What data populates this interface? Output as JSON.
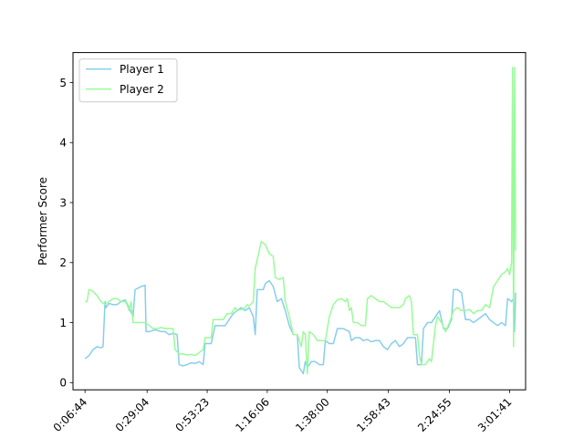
{
  "chart_data": {
    "type": "line",
    "title": "",
    "xlabel": "",
    "ylabel": "Performer Score",
    "xlim": [
      -0.6,
      22.0
    ],
    "ylim": [
      -0.12,
      5.5
    ],
    "x_ticks": [
      {
        "pos": 0.0,
        "label": "0:06:44"
      },
      {
        "pos": 3.1,
        "label": "0:29:04"
      },
      {
        "pos": 6.1,
        "label": "0:53:23"
      },
      {
        "pos": 9.1,
        "label": "1:16:06"
      },
      {
        "pos": 12.1,
        "label": "1:38:00"
      },
      {
        "pos": 15.15,
        "label": "1:58:43"
      },
      {
        "pos": 18.2,
        "label": "2:24:55"
      },
      {
        "pos": 21.2,
        "label": "3:01:41"
      }
    ],
    "y_ticks": [
      0,
      1,
      2,
      3,
      4,
      5
    ],
    "grid": false,
    "legend": "upper-left",
    "series": [
      {
        "name": "Player 1",
        "color": "#87ceeb",
        "points": [
          [
            0,
            0.4
          ],
          [
            0.2,
            0.45
          ],
          [
            0.4,
            0.55
          ],
          [
            0.6,
            0.6
          ],
          [
            0.8,
            0.58
          ],
          [
            0.9,
            0.6
          ],
          [
            1.0,
            1.35
          ],
          [
            1.05,
            1.25
          ],
          [
            1.2,
            1.32
          ],
          [
            1.4,
            1.3
          ],
          [
            1.6,
            1.3
          ],
          [
            1.8,
            1.35
          ],
          [
            2.0,
            1.38
          ],
          [
            2.2,
            1.25
          ],
          [
            2.4,
            1.1
          ],
          [
            2.5,
            1.55
          ],
          [
            2.8,
            1.6
          ],
          [
            3.0,
            1.62
          ],
          [
            3.05,
            0.85
          ],
          [
            3.2,
            0.85
          ],
          [
            3.5,
            0.88
          ],
          [
            3.8,
            0.85
          ],
          [
            4.0,
            0.85
          ],
          [
            4.2,
            0.8
          ],
          [
            4.4,
            0.82
          ],
          [
            4.6,
            0.8
          ],
          [
            4.7,
            0.3
          ],
          [
            4.9,
            0.28
          ],
          [
            5.1,
            0.3
          ],
          [
            5.3,
            0.33
          ],
          [
            5.5,
            0.32
          ],
          [
            5.7,
            0.35
          ],
          [
            5.9,
            0.3
          ],
          [
            6.0,
            0.65
          ],
          [
            6.3,
            0.65
          ],
          [
            6.5,
            0.95
          ],
          [
            6.8,
            0.95
          ],
          [
            7.0,
            0.95
          ],
          [
            7.2,
            1.05
          ],
          [
            7.4,
            1.15
          ],
          [
            7.6,
            1.2
          ],
          [
            7.8,
            1.25
          ],
          [
            8.0,
            1.2
          ],
          [
            8.2,
            1.25
          ],
          [
            8.4,
            1.1
          ],
          [
            8.5,
            0.8
          ],
          [
            8.6,
            1.55
          ],
          [
            8.9,
            1.55
          ],
          [
            9.0,
            1.65
          ],
          [
            9.2,
            1.7
          ],
          [
            9.4,
            1.6
          ],
          [
            9.6,
            1.35
          ],
          [
            9.8,
            1.4
          ],
          [
            10.0,
            1.2
          ],
          [
            10.2,
            0.95
          ],
          [
            10.4,
            0.8
          ],
          [
            10.6,
            0.8
          ],
          [
            10.7,
            0.25
          ],
          [
            10.9,
            0.15
          ],
          [
            11.0,
            0.35
          ],
          [
            11.1,
            0.25
          ],
          [
            11.3,
            0.35
          ],
          [
            11.5,
            0.35
          ],
          [
            11.7,
            0.3
          ],
          [
            11.9,
            0.3
          ],
          [
            12.0,
            0.7
          ],
          [
            12.2,
            0.65
          ],
          [
            12.4,
            0.65
          ],
          [
            12.6,
            0.9
          ],
          [
            12.9,
            0.9
          ],
          [
            13.2,
            0.85
          ],
          [
            13.3,
            0.7
          ],
          [
            13.5,
            0.75
          ],
          [
            13.7,
            0.75
          ],
          [
            13.9,
            0.7
          ],
          [
            14.1,
            0.72
          ],
          [
            14.3,
            0.68
          ],
          [
            14.5,
            0.7
          ],
          [
            14.7,
            0.7
          ],
          [
            14.9,
            0.6
          ],
          [
            15.1,
            0.55
          ],
          [
            15.3,
            0.65
          ],
          [
            15.5,
            0.7
          ],
          [
            15.7,
            0.6
          ],
          [
            15.9,
            0.65
          ],
          [
            16.1,
            0.75
          ],
          [
            16.3,
            0.75
          ],
          [
            16.5,
            0.75
          ],
          [
            16.6,
            0.3
          ],
          [
            16.8,
            0.3
          ],
          [
            16.9,
            0.9
          ],
          [
            17.1,
            1.0
          ],
          [
            17.3,
            1.0
          ],
          [
            17.5,
            1.1
          ],
          [
            17.7,
            1.2
          ],
          [
            17.9,
            0.9
          ],
          [
            18.1,
            0.9
          ],
          [
            18.3,
            1.05
          ],
          [
            18.4,
            1.55
          ],
          [
            18.6,
            1.55
          ],
          [
            18.8,
            1.5
          ],
          [
            19.0,
            1.05
          ],
          [
            19.2,
            1.05
          ],
          [
            19.4,
            1.0
          ],
          [
            19.6,
            1.05
          ],
          [
            19.8,
            1.1
          ],
          [
            20.0,
            1.15
          ],
          [
            20.2,
            1.05
          ],
          [
            20.4,
            1.0
          ],
          [
            20.6,
            0.95
          ],
          [
            20.8,
            1.0
          ],
          [
            21.0,
            0.95
          ],
          [
            21.1,
            1.4
          ],
          [
            21.3,
            1.35
          ],
          [
            21.4,
            1.4
          ],
          [
            21.45,
            0.85
          ],
          [
            21.5,
            1.5
          ]
        ]
      },
      {
        "name": "Player 2",
        "color": "#98fb98",
        "points": [
          [
            0,
            1.35
          ],
          [
            0.1,
            1.35
          ],
          [
            0.2,
            1.55
          ],
          [
            0.4,
            1.52
          ],
          [
            0.6,
            1.45
          ],
          [
            0.8,
            1.35
          ],
          [
            1.0,
            1.3
          ],
          [
            1.2,
            1.35
          ],
          [
            1.4,
            1.4
          ],
          [
            1.6,
            1.4
          ],
          [
            1.8,
            1.35
          ],
          [
            2.0,
            1.35
          ],
          [
            2.1,
            1.3
          ],
          [
            2.2,
            1.2
          ],
          [
            2.3,
            1.35
          ],
          [
            2.4,
            1.0
          ],
          [
            2.6,
            1.0
          ],
          [
            2.8,
            1.0
          ],
          [
            3.0,
            1.0
          ],
          [
            3.2,
            0.95
          ],
          [
            3.4,
            0.9
          ],
          [
            3.6,
            0.9
          ],
          [
            3.8,
            0.92
          ],
          [
            4.0,
            0.9
          ],
          [
            4.2,
            0.9
          ],
          [
            4.4,
            0.9
          ],
          [
            4.5,
            0.55
          ],
          [
            4.7,
            0.48
          ],
          [
            4.9,
            0.48
          ],
          [
            5.1,
            0.46
          ],
          [
            5.3,
            0.47
          ],
          [
            5.5,
            0.45
          ],
          [
            5.7,
            0.5
          ],
          [
            5.9,
            0.55
          ],
          [
            6.0,
            0.75
          ],
          [
            6.3,
            0.75
          ],
          [
            6.4,
            1.05
          ],
          [
            6.6,
            1.05
          ],
          [
            6.9,
            1.05
          ],
          [
            7.1,
            1.15
          ],
          [
            7.3,
            1.15
          ],
          [
            7.5,
            1.25
          ],
          [
            7.6,
            1.2
          ],
          [
            7.8,
            1.22
          ],
          [
            8.0,
            1.25
          ],
          [
            8.1,
            1.3
          ],
          [
            8.2,
            1.28
          ],
          [
            8.4,
            1.35
          ],
          [
            8.5,
            1.9
          ],
          [
            8.7,
            2.2
          ],
          [
            8.8,
            2.35
          ],
          [
            9.0,
            2.3
          ],
          [
            9.2,
            2.15
          ],
          [
            9.4,
            2.1
          ],
          [
            9.5,
            1.75
          ],
          [
            9.7,
            1.72
          ],
          [
            9.9,
            1.75
          ],
          [
            10.0,
            1.35
          ],
          [
            10.2,
            1.1
          ],
          [
            10.4,
            0.8
          ],
          [
            10.6,
            0.8
          ],
          [
            10.8,
            0.6
          ],
          [
            10.9,
            0.85
          ],
          [
            11.0,
            0.8
          ],
          [
            11.1,
            0.15
          ],
          [
            11.2,
            0.85
          ],
          [
            11.4,
            0.8
          ],
          [
            11.6,
            0.7
          ],
          [
            11.8,
            0.7
          ],
          [
            12.0,
            0.7
          ],
          [
            12.2,
            1.1
          ],
          [
            12.4,
            1.3
          ],
          [
            12.6,
            1.38
          ],
          [
            12.8,
            1.4
          ],
          [
            13.0,
            1.35
          ],
          [
            13.1,
            1.4
          ],
          [
            13.2,
            1.2
          ],
          [
            13.3,
            1.25
          ],
          [
            13.4,
            1.0
          ],
          [
            13.6,
            1.0
          ],
          [
            13.8,
            0.95
          ],
          [
            14.0,
            0.95
          ],
          [
            14.1,
            1.4
          ],
          [
            14.3,
            1.45
          ],
          [
            14.5,
            1.4
          ],
          [
            14.7,
            1.35
          ],
          [
            14.9,
            1.35
          ],
          [
            15.1,
            1.3
          ],
          [
            15.3,
            1.25
          ],
          [
            15.5,
            1.25
          ],
          [
            15.7,
            1.25
          ],
          [
            15.9,
            1.3
          ],
          [
            16.0,
            1.4
          ],
          [
            16.2,
            1.45
          ],
          [
            16.3,
            1.35
          ],
          [
            16.4,
            0.8
          ],
          [
            16.6,
            0.8
          ],
          [
            16.7,
            0.45
          ],
          [
            16.8,
            0.3
          ],
          [
            17.0,
            0.3
          ],
          [
            17.2,
            0.4
          ],
          [
            17.3,
            0.35
          ],
          [
            17.5,
            0.95
          ],
          [
            17.6,
            1.1
          ],
          [
            17.8,
            1.0
          ],
          [
            18.0,
            0.85
          ],
          [
            18.2,
            1.0
          ],
          [
            18.4,
            1.2
          ],
          [
            18.6,
            1.25
          ],
          [
            18.8,
            1.2
          ],
          [
            19.0,
            1.2
          ],
          [
            19.2,
            1.22
          ],
          [
            19.4,
            1.15
          ],
          [
            19.6,
            1.2
          ],
          [
            19.8,
            1.2
          ],
          [
            20.0,
            1.3
          ],
          [
            20.2,
            1.25
          ],
          [
            20.4,
            1.6
          ],
          [
            20.6,
            1.7
          ],
          [
            20.8,
            1.8
          ],
          [
            21.0,
            1.85
          ],
          [
            21.1,
            1.9
          ],
          [
            21.2,
            1.8
          ],
          [
            21.3,
            2.0
          ],
          [
            21.35,
            5.25
          ],
          [
            21.4,
            0.6
          ],
          [
            21.45,
            5.25
          ],
          [
            21.5,
            2.2
          ]
        ]
      }
    ]
  }
}
